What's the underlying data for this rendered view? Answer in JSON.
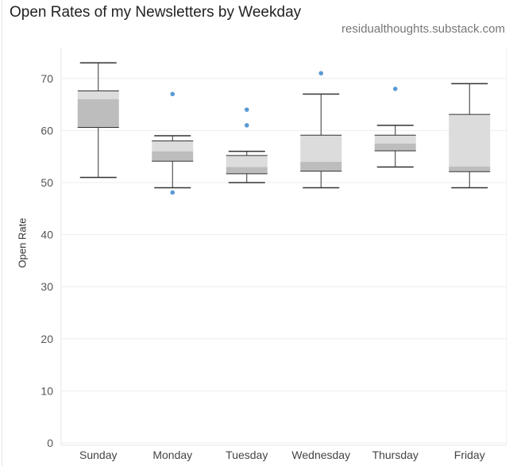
{
  "header": {
    "title": "Open Rates of my Newsletters by Weekday",
    "source": "residualthoughts.substack.com"
  },
  "chart_data": {
    "type": "box",
    "title": "Open Rates of my Newsletters by Weekday",
    "xlabel": "",
    "ylabel": "Open Rate",
    "ylim": [
      0,
      75
    ],
    "yticks": [
      0,
      10,
      20,
      30,
      40,
      50,
      60,
      70
    ],
    "grid": true,
    "legend": "none",
    "colors": {
      "upper_box": "#dcdcdc",
      "lower_box": "#bdbdbd",
      "outlier": "#5b9bd5",
      "whisker": "#333333",
      "grid": "#eeeeee"
    },
    "categories": [
      "Sunday",
      "Monday",
      "Tuesday",
      "Wednesday",
      "Thursday",
      "Friday"
    ],
    "boxes": [
      {
        "category": "Sunday",
        "min": 51,
        "q1": 60.6,
        "median": 66,
        "q3": 67.6,
        "max": 73,
        "outliers": []
      },
      {
        "category": "Monday",
        "min": 49,
        "q1": 54.1,
        "median": 56,
        "q3": 58,
        "max": 59,
        "outliers": [
          67,
          48.1
        ]
      },
      {
        "category": "Tuesday",
        "min": 50,
        "q1": 51.7,
        "median": 53,
        "q3": 55.2,
        "max": 56,
        "outliers": [
          64,
          61
        ]
      },
      {
        "category": "Wednesday",
        "min": 49,
        "q1": 52.2,
        "median": 54,
        "q3": 59.1,
        "max": 67,
        "outliers": [
          71
        ]
      },
      {
        "category": "Thursday",
        "min": 53,
        "q1": 56.1,
        "median": 57.5,
        "q3": 59.1,
        "max": 61,
        "outliers": [
          68
        ]
      },
      {
        "category": "Friday",
        "min": 49,
        "q1": 52.1,
        "median": 53.1,
        "q3": 63.1,
        "max": 69,
        "outliers": []
      }
    ]
  }
}
